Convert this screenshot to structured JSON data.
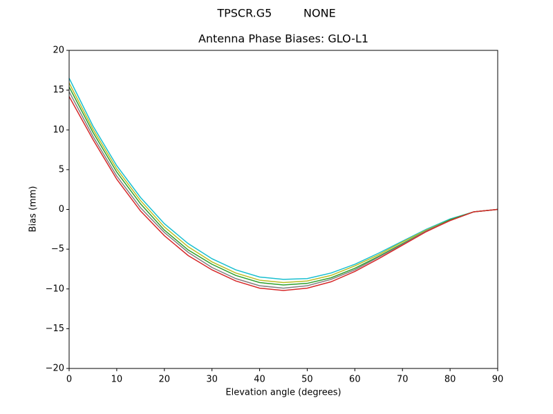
{
  "chart_data": {
    "type": "line",
    "suptitle": "TPSCR.G5         NONE",
    "title": "Antenna Phase Biases: GLO-L1",
    "x_label": "Elevation angle (degrees)",
    "y_label": "Bias (mm)",
    "x": [
      0,
      5,
      10,
      15,
      20,
      25,
      30,
      35,
      40,
      45,
      50,
      55,
      60,
      65,
      70,
      75,
      80,
      85,
      90
    ],
    "series": [
      {
        "color": "#17becf",
        "values": [
          16.5,
          10.5,
          5.5,
          1.5,
          -1.8,
          -4.3,
          -6.2,
          -7.6,
          -8.5,
          -8.8,
          -8.7,
          -8.0,
          -6.9,
          -5.5,
          -4.0,
          -2.5,
          -1.2,
          -0.3,
          0
        ]
      },
      {
        "color": "#bcbd22",
        "values": [
          15.9,
          10.1,
          5.1,
          1.1,
          -2.2,
          -4.7,
          -6.6,
          -8.0,
          -8.9,
          -9.2,
          -9.0,
          -8.3,
          -7.1,
          -5.7,
          -4.1,
          -2.6,
          -1.3,
          -0.3,
          0
        ]
      },
      {
        "color": "#2ca02c",
        "values": [
          15.4,
          9.7,
          4.7,
          0.7,
          -2.6,
          -5.1,
          -6.9,
          -8.3,
          -9.2,
          -9.5,
          -9.3,
          -8.6,
          -7.4,
          -5.9,
          -4.3,
          -2.7,
          -1.3,
          -0.3,
          0
        ]
      },
      {
        "color": "#7f7f7f",
        "values": [
          14.8,
          9.2,
          4.2,
          0.2,
          -2.9,
          -5.4,
          -7.3,
          -8.7,
          -9.6,
          -9.9,
          -9.6,
          -8.8,
          -7.6,
          -6.0,
          -4.4,
          -2.7,
          -1.4,
          -0.3,
          0
        ]
      },
      {
        "color": "#d62728",
        "values": [
          14.2,
          8.8,
          3.8,
          -0.2,
          -3.3,
          -5.8,
          -7.6,
          -9.0,
          -9.9,
          -10.2,
          -9.9,
          -9.1,
          -7.8,
          -6.2,
          -4.5,
          -2.8,
          -1.4,
          -0.3,
          0
        ]
      }
    ],
    "xlim": [
      0,
      90
    ],
    "xticks": [
      0,
      10,
      20,
      30,
      40,
      50,
      60,
      70,
      80,
      90
    ],
    "ylim": [
      -20,
      20
    ],
    "yticks": [
      {
        "value": -20,
        "label": "−20"
      },
      {
        "value": -15,
        "label": "−15"
      },
      {
        "value": -10,
        "label": "−10"
      },
      {
        "value": -5,
        "label": "−5"
      },
      0,
      5,
      10,
      15,
      20
    ],
    "grid": false
  }
}
